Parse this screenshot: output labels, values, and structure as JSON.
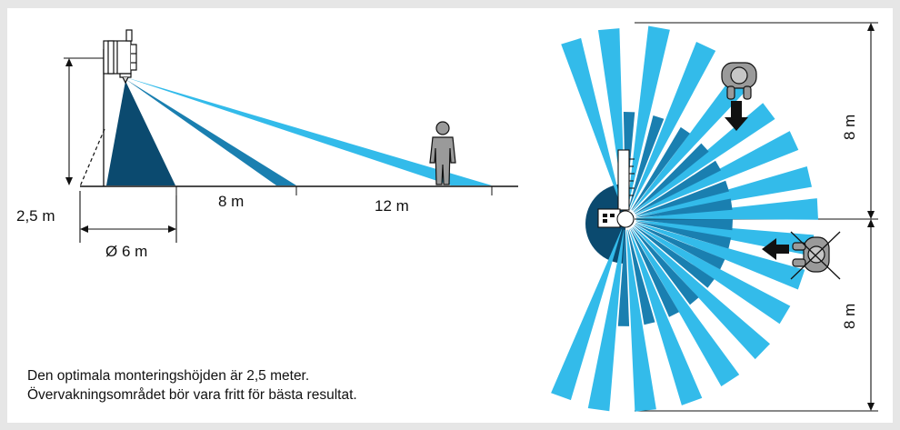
{
  "side_view": {
    "height_label": "2,5 m",
    "diameter_label": "Ø 6 m",
    "range_mid_label": "8 m",
    "range_far_label": "12 m"
  },
  "top_view": {
    "range_upper_label": "8 m",
    "range_lower_label": "8 m"
  },
  "caption": {
    "line1": "Den optimala monteringshöjden är 2,5 meter.",
    "line2": "Övervakningsområdet bör vara fritt för bästa resultat."
  },
  "colors": {
    "dark_blue": "#0b4a6f",
    "mid_blue": "#1a7fb0",
    "light_blue": "#33bbea",
    "line": "#111111"
  },
  "icons": [
    "sensor-side-icon",
    "person-standing-icon",
    "sensor-top-icon",
    "person-top-icon",
    "arrow-down-icon",
    "arrow-left-icon",
    "crossed-person-icon"
  ]
}
